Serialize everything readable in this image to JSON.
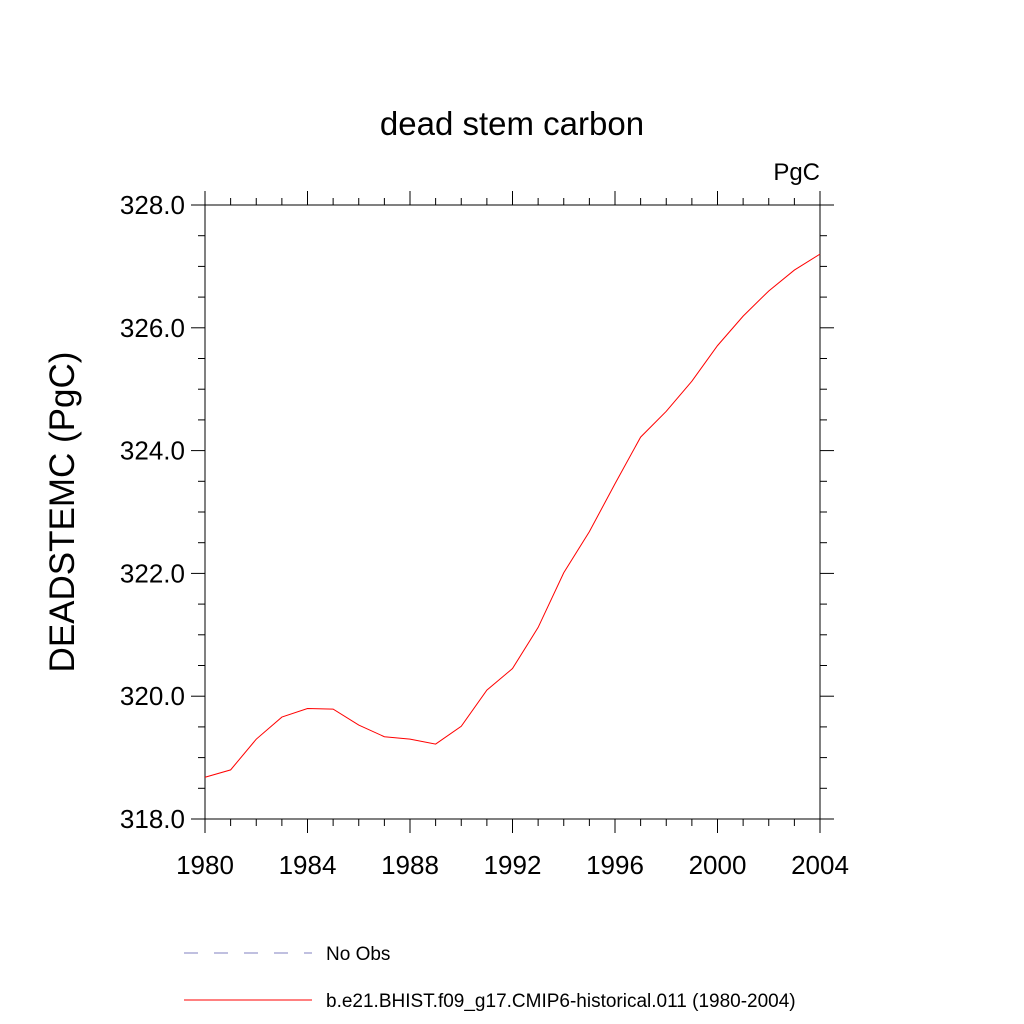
{
  "chart_data": {
    "type": "line",
    "title": "dead stem carbon",
    "units_label": "PgC",
    "xlabel": "",
    "ylabel": "DEADSTEMC  (PgC)",
    "xlim": [
      1980,
      2004
    ],
    "ylim": [
      318.0,
      328.0
    ],
    "x_ticks": [
      1980,
      1984,
      1988,
      1992,
      1996,
      2000,
      2004
    ],
    "x_tick_labels": [
      "1980",
      "1984",
      "1988",
      "1992",
      "1996",
      "2000",
      "2004"
    ],
    "y_ticks": [
      318.0,
      320.0,
      322.0,
      324.0,
      326.0,
      328.0
    ],
    "y_tick_labels": [
      "318.0",
      "320.0",
      "322.0",
      "324.0",
      "326.0",
      "328.0"
    ],
    "grid": false,
    "legend_position": "bottom",
    "series": [
      {
        "name": "No Obs",
        "color": "#8080c0",
        "dash": "dashed",
        "x": [],
        "values": []
      },
      {
        "name": "b.e21.BHIST.f09_g17.CMIP6-historical.011 (1980-2004)",
        "color": "#ff0000",
        "dash": "solid",
        "x": [
          1980,
          1981,
          1982,
          1983,
          1984,
          1985,
          1986,
          1987,
          1988,
          1989,
          1990,
          1991,
          1992,
          1993,
          1994,
          1995,
          1996,
          1997,
          1998,
          1999,
          2000,
          2001,
          2002,
          2003,
          2004
        ],
        "values": [
          318.68,
          318.8,
          319.3,
          319.66,
          319.8,
          319.79,
          319.53,
          319.34,
          319.3,
          319.22,
          319.51,
          320.1,
          320.45,
          321.12,
          322.01,
          322.68,
          323.46,
          324.22,
          324.64,
          325.13,
          325.71,
          326.19,
          326.6,
          326.94,
          327.2
        ]
      }
    ]
  }
}
